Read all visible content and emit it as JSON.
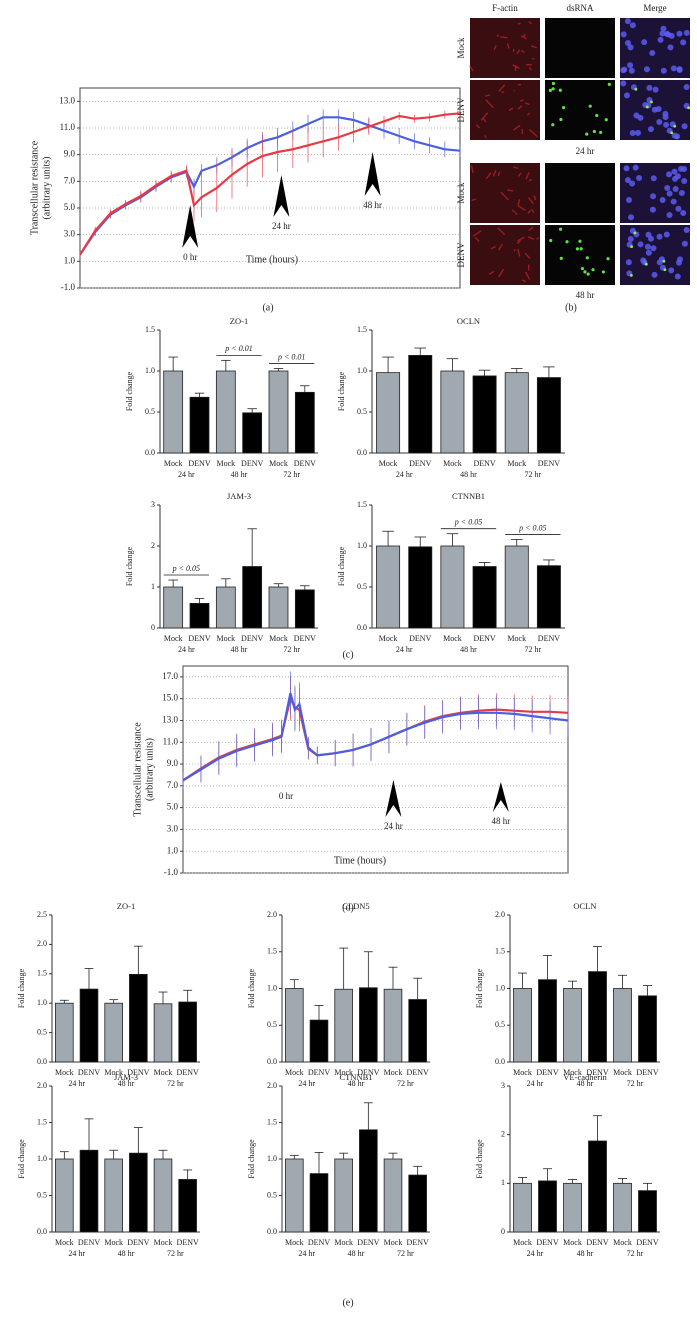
{
  "panel_labels": [
    "(a)",
    "(b)",
    "(c)",
    "(d)",
    "(e)"
  ],
  "micrographs": {
    "columns": [
      "F-actin",
      "dsRNA",
      "Merge"
    ],
    "rows": [
      "Mock",
      "DENV",
      "Mock",
      "DENV"
    ],
    "times": [
      "24 hr",
      "48 hr"
    ]
  },
  "chart_data": [
    {
      "type": "line",
      "ylabel": [
        "Transcellular resistance",
        "(arbitrary units)"
      ],
      "xlabel": "Time (hours)",
      "x": [
        -29,
        -25,
        -21,
        -17,
        -13,
        -9,
        -5,
        -1,
        1,
        3,
        7,
        11,
        15,
        19,
        23,
        27,
        31,
        35,
        39,
        43,
        47,
        51,
        55,
        59,
        63,
        67,
        71
      ],
      "xlim": [
        -29,
        71
      ],
      "ylim": [
        -1,
        14
      ],
      "yticks": [
        {
          "value": -1,
          "label": "-1.0"
        },
        {
          "value": 1,
          "label": "1.0"
        },
        {
          "value": 3,
          "label": "3.0"
        },
        {
          "value": 5,
          "label": "5.0"
        },
        {
          "value": 7,
          "label": "7.0"
        },
        {
          "value": 9,
          "label": "9.0"
        },
        {
          "value": 11,
          "label": "11.0"
        },
        {
          "value": 13,
          "label": "13.0"
        }
      ],
      "grid": true,
      "annotations": [
        {
          "text": "0 hr",
          "x": 0
        },
        {
          "text": "24 hr",
          "x": 24
        },
        {
          "text": "48 hr",
          "x": 48
        }
      ],
      "series": [
        {
          "color": "#4b5fe0",
          "values": [
            1.5,
            3.2,
            4.5,
            5.2,
            5.8,
            6.6,
            7.3,
            7.7,
            6.6,
            7.8,
            8.2,
            8.8,
            9.5,
            10.0,
            10.3,
            10.8,
            11.3,
            11.8,
            11.8,
            11.6,
            11.2,
            10.8,
            10.4,
            10.0,
            9.7,
            9.4,
            9.3
          ],
          "errors": [
            0.2,
            0.3,
            0.3,
            0.3,
            0.4,
            0.4,
            0.4,
            0.4,
            0.6,
            0.5,
            0.6,
            0.7,
            0.7,
            0.7,
            0.7,
            0.7,
            0.7,
            0.6,
            0.6,
            0.6,
            0.6,
            0.6,
            0.6,
            0.6,
            0.6,
            0.6,
            0.5
          ]
        },
        {
          "color": "#e63a45",
          "values": [
            1.5,
            3.3,
            4.6,
            5.3,
            5.9,
            6.7,
            7.4,
            7.8,
            5.2,
            5.8,
            6.5,
            7.5,
            8.3,
            8.9,
            9.2,
            9.4,
            9.7,
            10.0,
            10.3,
            10.7,
            11.1,
            11.5,
            11.9,
            11.7,
            11.8,
            12.0,
            12.1
          ],
          "errors": [
            0.2,
            0.3,
            0.3,
            0.3,
            0.4,
            0.4,
            0.4,
            0.4,
            1.2,
            1.5,
            1.8,
            1.8,
            1.7,
            1.6,
            1.5,
            1.4,
            1.3,
            1.2,
            1.0,
            0.8,
            0.6,
            0.4,
            0.3,
            0.3,
            0.3,
            0.3,
            0.3
          ]
        }
      ]
    },
    {
      "type": "bar",
      "title": "ZO-1",
      "ylabel": "Fold change",
      "categories": [
        "Mock",
        "DENV",
        "Mock",
        "DENV",
        "Mock",
        "DENV"
      ],
      "groups": [
        "24 hr",
        "48 hr",
        "72 hr"
      ],
      "bar_colors": [
        "#a0a9b0",
        "#000000"
      ],
      "ylim": [
        0,
        1.5
      ],
      "yticks": [
        {
          "value": 0,
          "label": "0.0"
        },
        {
          "value": 0.5,
          "label": "0.5"
        },
        {
          "value": 1,
          "label": "1.0"
        },
        {
          "value": 1.5,
          "label": "1.5"
        }
      ],
      "values": [
        1.0,
        0.68,
        1.0,
        0.49,
        1.0,
        0.74
      ],
      "errors": [
        0.17,
        0.05,
        0.13,
        0.05,
        0.03,
        0.08
      ],
      "significance": [
        null,
        "p < 0.01",
        "p < 0.01"
      ]
    },
    {
      "type": "bar",
      "title": "OCLN",
      "ylabel": "Fold change",
      "categories": [
        "Mock",
        "DENV",
        "Mock",
        "DENV",
        "Mock",
        "DENV"
      ],
      "groups": [
        "24 hr",
        "48 hr",
        "72 hr"
      ],
      "bar_colors": [
        "#a0a9b0",
        "#000000"
      ],
      "ylim": [
        0,
        1.5
      ],
      "yticks": [
        {
          "value": 0,
          "label": "0.0"
        },
        {
          "value": 0.5,
          "label": "0.5"
        },
        {
          "value": 1,
          "label": "1.0"
        },
        {
          "value": 1.5,
          "label": "1.5"
        }
      ],
      "values": [
        0.98,
        1.19,
        1.0,
        0.94,
        0.98,
        0.92
      ],
      "errors": [
        0.19,
        0.09,
        0.15,
        0.07,
        0.05,
        0.13
      ]
    },
    {
      "type": "bar",
      "title": "JAM-3",
      "ylabel": "Fold change",
      "categories": [
        "Mock",
        "DENV",
        "Mock",
        "DENV",
        "Mock",
        "DENV"
      ],
      "groups": [
        "24 hr",
        "48 hr",
        "72 hr"
      ],
      "bar_colors": [
        "#a0a9b0",
        "#000000"
      ],
      "ylim": [
        0,
        3
      ],
      "yticks": [
        0,
        1,
        2,
        3
      ],
      "values": [
        1.0,
        0.6,
        1.0,
        1.5,
        1.0,
        0.93
      ],
      "errors": [
        0.17,
        0.12,
        0.2,
        0.92,
        0.08,
        0.1
      ],
      "significance": [
        "p < 0.05",
        null,
        null
      ]
    },
    {
      "type": "bar",
      "title": "CTNNB1",
      "ylabel": "Fold change",
      "categories": [
        "Mock",
        "DENV",
        "Mock",
        "DENV",
        "Mock",
        "DENV"
      ],
      "groups": [
        "24 hr",
        "48 hr",
        "72 hr"
      ],
      "bar_colors": [
        "#a0a9b0",
        "#000000"
      ],
      "ylim": [
        0,
        1.5
      ],
      "yticks": [
        {
          "value": 0,
          "label": "0.0"
        },
        {
          "value": 0.5,
          "label": "0.5"
        },
        {
          "value": 1,
          "label": "1.0"
        },
        {
          "value": 1.5,
          "label": "1.5"
        }
      ],
      "values": [
        1.0,
        0.99,
        1.0,
        0.75,
        1.0,
        0.76
      ],
      "errors": [
        0.18,
        0.12,
        0.15,
        0.05,
        0.08,
        0.07
      ],
      "significance": [
        null,
        "p < 0.05",
        "p < 0.05"
      ]
    },
    {
      "type": "line",
      "ylabel": [
        "Transcellular resistance",
        "(arbitrary units)"
      ],
      "xlabel": "Time (hours)",
      "x": [
        -23,
        -19,
        -15,
        -11,
        -7,
        -3,
        -1,
        1,
        2,
        3,
        5,
        7,
        11,
        15,
        19,
        23,
        27,
        31,
        35,
        39,
        43,
        47,
        51,
        55,
        59,
        63
      ],
      "xlim": [
        -23,
        63
      ],
      "ylim": [
        -1,
        18
      ],
      "yticks": [
        {
          "value": -1,
          "label": "-1.0"
        },
        {
          "value": 1,
          "label": "1.0"
        },
        {
          "value": 3,
          "label": "3.0"
        },
        {
          "value": 5,
          "label": "5.0"
        },
        {
          "value": 7,
          "label": "7.0"
        },
        {
          "value": 9,
          "label": "9.0"
        },
        {
          "value": 11,
          "label": "11.0"
        },
        {
          "value": 13,
          "label": "13.0"
        },
        {
          "value": 15,
          "label": "15.0"
        },
        {
          "value": 17,
          "label": "17.0"
        }
      ],
      "grid": true,
      "annotations": [
        {
          "text": "0 hr",
          "x": 0
        },
        {
          "text": "24 hr",
          "x": 24
        },
        {
          "text": "48 hr",
          "x": 48
        }
      ],
      "series": [
        {
          "color": "#e63a45",
          "values": [
            7.5,
            8.6,
            9.6,
            10.3,
            10.8,
            11.3,
            11.6,
            15.0,
            14.2,
            14.0,
            10.4,
            9.8,
            10.0,
            10.3,
            10.8,
            11.5,
            12.2,
            12.9,
            13.4,
            13.7,
            13.9,
            14.0,
            13.9,
            13.8,
            13.8,
            13.7
          ],
          "errors": [
            0.8,
            1.2,
            1.5,
            1.5,
            1.5,
            1.5,
            1.5,
            2.0,
            2.0,
            2.0,
            1.0,
            0.8,
            1.2,
            1.5,
            1.5,
            1.5,
            1.5,
            1.5,
            1.5,
            1.5,
            1.5,
            1.5,
            1.5,
            1.5,
            1.5,
            1.5
          ]
        },
        {
          "color": "#4b5fe0",
          "values": [
            7.5,
            8.5,
            9.5,
            10.2,
            10.7,
            11.2,
            11.5,
            15.5,
            14.0,
            14.5,
            10.5,
            9.8,
            10.0,
            10.3,
            10.8,
            11.5,
            12.2,
            12.8,
            13.3,
            13.6,
            13.7,
            13.7,
            13.6,
            13.4,
            13.2,
            13.0
          ],
          "errors": [
            0.8,
            1.2,
            1.5,
            1.5,
            1.5,
            1.5,
            1.5,
            2.0,
            2.0,
            2.0,
            1.0,
            0.8,
            1.2,
            1.5,
            1.5,
            1.5,
            1.5,
            1.5,
            1.5,
            1.5,
            1.5,
            1.5,
            1.5,
            1.5,
            1.5,
            1.5
          ]
        }
      ]
    },
    {
      "type": "bar",
      "title": "ZO-1",
      "ylabel": "Fold change",
      "categories": [
        "Mock",
        "DENV",
        "Mock",
        "DENV",
        "Mock",
        "DENV"
      ],
      "groups": [
        "24 hr",
        "48 hr",
        "72 hr"
      ],
      "bar_colors": [
        "#a0a9b0",
        "#000000"
      ],
      "ylim": [
        0,
        2.5
      ],
      "yticks": [
        {
          "value": 0,
          "label": "0.0"
        },
        {
          "value": 0.5,
          "label": "0.5"
        },
        {
          "value": 1,
          "label": "1.0"
        },
        {
          "value": 1.5,
          "label": "1.5"
        },
        {
          "value": 2,
          "label": "2.0"
        },
        {
          "value": 2.5,
          "label": "2.5"
        }
      ],
      "values": [
        1.0,
        1.24,
        1.0,
        1.49,
        0.99,
        1.02
      ],
      "errors": [
        0.05,
        0.35,
        0.06,
        0.48,
        0.2,
        0.2
      ]
    },
    {
      "type": "bar",
      "title": "CLDN5",
      "ylabel": "Fold change",
      "categories": [
        "Mock",
        "DENV",
        "Mock",
        "DENV",
        "Mock",
        "DENV"
      ],
      "groups": [
        "24 hr",
        "48 hr",
        "72 hr"
      ],
      "bar_colors": [
        "#a0a9b0",
        "#000000"
      ],
      "ylim": [
        0,
        2
      ],
      "yticks": [
        {
          "value": 0,
          "label": "0.0"
        },
        {
          "value": 0.5,
          "label": "0.5"
        },
        {
          "value": 1,
          "label": "1.0"
        },
        {
          "value": 1.5,
          "label": "1.5"
        },
        {
          "value": 2,
          "label": "2.0"
        }
      ],
      "values": [
        1.0,
        0.57,
        0.99,
        1.01,
        0.99,
        0.85
      ],
      "errors": [
        0.12,
        0.2,
        0.56,
        0.49,
        0.3,
        0.29
      ]
    },
    {
      "type": "bar",
      "title": "OCLN",
      "ylabel": "Fold change",
      "categories": [
        "Mock",
        "DENV",
        "Mock",
        "DENV",
        "Mock",
        "DENV"
      ],
      "groups": [
        "24 hr",
        "48 hr",
        "72 hr"
      ],
      "bar_colors": [
        "#a0a9b0",
        "#000000"
      ],
      "ylim": [
        0,
        2
      ],
      "yticks": [
        {
          "value": 0,
          "label": "0.0"
        },
        {
          "value": 0.5,
          "label": "0.5"
        },
        {
          "value": 1,
          "label": "1.0"
        },
        {
          "value": 1.5,
          "label": "1.5"
        },
        {
          "value": 2,
          "label": "2.0"
        }
      ],
      "values": [
        1.0,
        1.12,
        1.0,
        1.23,
        1.0,
        0.9
      ],
      "errors": [
        0.21,
        0.33,
        0.1,
        0.34,
        0.18,
        0.14
      ]
    },
    {
      "type": "bar",
      "title": "JAM-3",
      "ylabel": "Fold change",
      "categories": [
        "Mock",
        "DENV",
        "Mock",
        "DENV",
        "Mock",
        "DENV"
      ],
      "groups": [
        "24 hr",
        "48 hr",
        "72 hr"
      ],
      "bar_colors": [
        "#a0a9b0",
        "#000000"
      ],
      "ylim": [
        0,
        2
      ],
      "yticks": [
        {
          "value": 0,
          "label": "0.0"
        },
        {
          "value": 0.5,
          "label": "0.5"
        },
        {
          "value": 1,
          "label": "1.0"
        },
        {
          "value": 1.5,
          "label": "1.5"
        },
        {
          "value": 2,
          "label": "2.0"
        }
      ],
      "values": [
        1.0,
        1.12,
        1.0,
        1.08,
        1.0,
        0.72
      ],
      "errors": [
        0.1,
        0.43,
        0.12,
        0.35,
        0.12,
        0.13
      ]
    },
    {
      "type": "bar",
      "title": "CTNNB1",
      "ylabel": "Fold change",
      "categories": [
        "Mock",
        "DENV",
        "Mock",
        "DENV",
        "Mock",
        "DENV"
      ],
      "groups": [
        "24 hr",
        "48 hr",
        "72 hr"
      ],
      "bar_colors": [
        "#a0a9b0",
        "#000000"
      ],
      "ylim": [
        0,
        2
      ],
      "yticks": [
        {
          "value": 0,
          "label": "0.0"
        },
        {
          "value": 0.5,
          "label": "0.5"
        },
        {
          "value": 1,
          "label": "1.0"
        },
        {
          "value": 1.5,
          "label": "1.5"
        },
        {
          "value": 2,
          "label": "2.0"
        }
      ],
      "values": [
        1.0,
        0.8,
        1.0,
        1.4,
        1.0,
        0.78
      ],
      "errors": [
        0.05,
        0.29,
        0.08,
        0.37,
        0.08,
        0.12
      ]
    },
    {
      "type": "bar",
      "title": "VE-cadherin",
      "ylabel": "Fold change",
      "categories": [
        "Mock",
        "DENV",
        "Mock",
        "DENV",
        "Mock",
        "DENV"
      ],
      "groups": [
        "24 hr",
        "48 hr",
        "72 hr"
      ],
      "bar_colors": [
        "#a0a9b0",
        "#000000"
      ],
      "ylim": [
        0,
        3
      ],
      "yticks": [
        0,
        1,
        2,
        3
      ],
      "values": [
        1.0,
        1.05,
        1.0,
        1.87,
        1.0,
        0.85
      ],
      "errors": [
        0.12,
        0.25,
        0.08,
        0.52,
        0.1,
        0.15
      ]
    }
  ]
}
